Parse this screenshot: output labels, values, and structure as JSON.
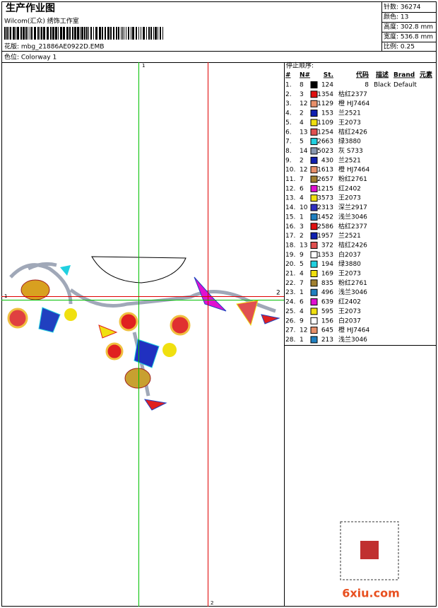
{
  "header": {
    "title": "生产作业图",
    "studio": "Wilcom(汇众) 绣饰工作室",
    "design": "花版: mbg_21886AE0922D.EMB",
    "colorway": "色位: Colorway 1",
    "info": [
      "针数: 36274",
      "颜色: 13",
      "高度: 302.8 mm",
      "宽度: 536.8 mm",
      "比例: 0.25"
    ]
  },
  "guides": {
    "top": "1",
    "left": "1",
    "right": "2",
    "bottom": "2"
  },
  "table": {
    "title": "停止顺序:",
    "columns": [
      "#",
      "N#",
      "St.",
      "代码",
      "描述",
      "Brand",
      "元素"
    ],
    "rows": [
      [
        "1.",
        "8",
        "#000000",
        "124",
        "8",
        "Black",
        "Default"
      ],
      [
        "2.",
        "3",
        "#e01010",
        "1354",
        "枯红2377"
      ],
      [
        "3.",
        "12",
        "#e8906a",
        "1129",
        "橙 HJ7464"
      ],
      [
        "4.",
        "2",
        "#1020b0",
        "153",
        "兰2521"
      ],
      [
        "5.",
        "4",
        "#f0e010",
        "1109",
        "王2073"
      ],
      [
        "6.",
        "13",
        "#e05050",
        "1254",
        "桔红2426"
      ],
      [
        "7.",
        "5",
        "#20d0e0",
        "2663",
        "绿3880"
      ],
      [
        "8.",
        "14",
        "#8898b0",
        "5023",
        "灰 S733"
      ],
      [
        "9.",
        "2",
        "#1020b0",
        "430",
        "兰2521"
      ],
      [
        "10.",
        "12",
        "#e8906a",
        "1613",
        "橙 HJ7464"
      ],
      [
        "11.",
        "7",
        "#a08030",
        "2657",
        "粉红2761"
      ],
      [
        "12.",
        "6",
        "#e010d0",
        "1215",
        "红2402"
      ],
      [
        "13.",
        "4",
        "#f0e010",
        "3573",
        "王2073"
      ],
      [
        "14.",
        "10",
        "#3030c0",
        "2313",
        "深兰2917"
      ],
      [
        "15.",
        "1",
        "#2080c0",
        "1452",
        "浅兰3046"
      ],
      [
        "16.",
        "3",
        "#e01010",
        "2586",
        "枯红2377"
      ],
      [
        "17.",
        "2",
        "#1020b0",
        "1957",
        "兰2521"
      ],
      [
        "18.",
        "13",
        "#e05050",
        "372",
        "桔红2426"
      ],
      [
        "19.",
        "9",
        "#ffffff",
        "1353",
        "白2037"
      ],
      [
        "20.",
        "5",
        "#20d0e0",
        "194",
        "绿3880"
      ],
      [
        "21.",
        "4",
        "#f0e010",
        "169",
        "王2073"
      ],
      [
        "22.",
        "7",
        "#a08030",
        "835",
        "粉红2761"
      ],
      [
        "23.",
        "1",
        "#2080c0",
        "496",
        "浅兰3046"
      ],
      [
        "24.",
        "6",
        "#e010d0",
        "639",
        "红2402"
      ],
      [
        "25.",
        "4",
        "#f0e010",
        "595",
        "王2073"
      ],
      [
        "26.",
        "9",
        "#ffffff",
        "156",
        "白2037"
      ],
      [
        "27.",
        "12",
        "#e8906a",
        "645",
        "橙 HJ7464"
      ],
      [
        "28.",
        "1",
        "#2080c0",
        "213",
        "浅兰3046"
      ]
    ]
  },
  "watermark": "6xiu.com"
}
